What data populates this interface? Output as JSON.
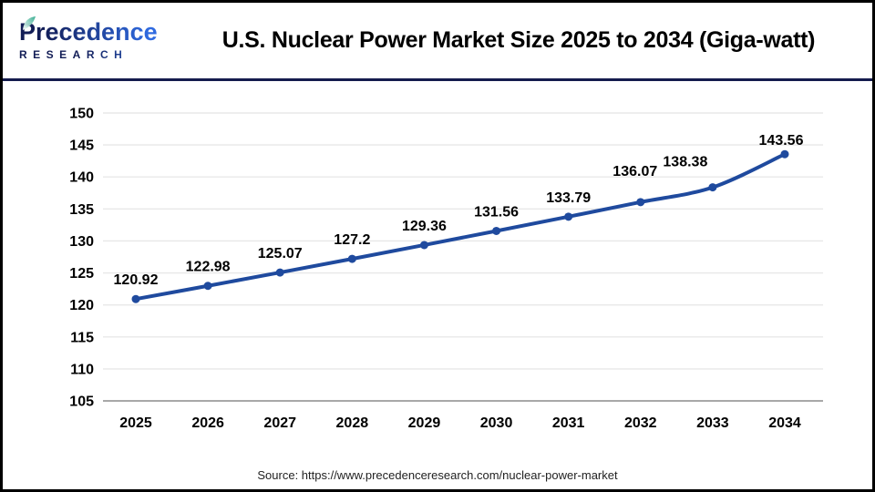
{
  "header": {
    "logo_line1": "Precedence",
    "logo_line2": "RESEARCH",
    "title": "U.S. Nuclear Power Market Size 2025 to 2034 (Giga-watt)"
  },
  "footer": {
    "source": "Source: https://www.precedenceresearch.com/nuclear-power-market"
  },
  "colors": {
    "line": "#1f4a9e",
    "marker": "#1f4a9e",
    "grid": "#e8e8e8",
    "axis": "#a8a8a8",
    "text": "#000000",
    "divider": "#141b4d",
    "logo_gradient_start": "#121d56",
    "logo_gradient_end": "#2f6ae0",
    "leaf": "#2fa98c"
  },
  "chart_data": {
    "type": "line",
    "title": "U.S. Nuclear Power Market Size 2025 to 2034 (Giga-watt)",
    "categories": [
      "2025",
      "2026",
      "2027",
      "2028",
      "2029",
      "2030",
      "2031",
      "2032",
      "2033",
      "2034"
    ],
    "values": [
      120.92,
      122.98,
      125.07,
      127.2,
      129.36,
      131.56,
      133.79,
      136.07,
      138.38,
      143.56
    ],
    "labels": [
      "120.92",
      "122.98",
      "125.07",
      "127.2",
      "129.36",
      "131.56",
      "133.79",
      "136.07",
      "138.38",
      "143.56"
    ],
    "xlabel": "",
    "ylabel": "",
    "ylim": [
      105,
      150
    ],
    "ytick_step": 5,
    "grid": true,
    "legend": "none"
  }
}
